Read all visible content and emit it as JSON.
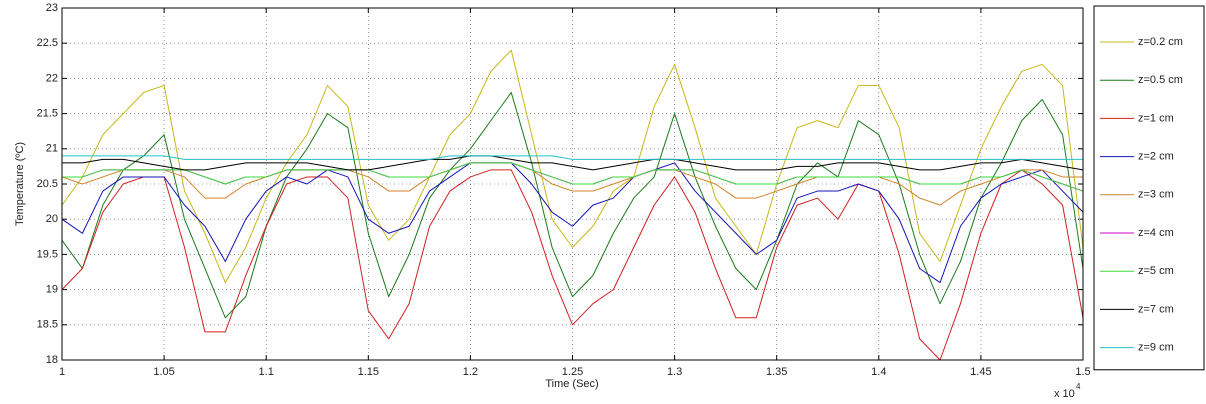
{
  "chart_data": {
    "type": "line",
    "xlabel": "Time (Sec)",
    "ylabel": "Temperature (ºC)",
    "x_scale_base": "x 10",
    "x_scale_exponent": "4",
    "x": [
      10000,
      10100,
      10200,
      10300,
      10400,
      10500,
      10600,
      10700,
      10800,
      10900,
      11000,
      11100,
      11200,
      11300,
      11400,
      11500,
      11600,
      11700,
      11800,
      11900,
      12000,
      12100,
      12200,
      12300,
      12400,
      12500,
      12600,
      12700,
      12800,
      12900,
      13000,
      13100,
      13200,
      13300,
      13400,
      13500,
      13600,
      13700,
      13800,
      13900,
      14000,
      14100,
      14200,
      14300,
      14400,
      14500,
      14600,
      14700,
      14800,
      14900,
      15000
    ],
    "xlim": [
      10000,
      15000
    ],
    "xticks": [
      {
        "value": 10000,
        "label": "1"
      },
      {
        "value": 10500,
        "label": "1.05"
      },
      {
        "value": 11000,
        "label": "1.1"
      },
      {
        "value": 11500,
        "label": "1.15"
      },
      {
        "value": 12000,
        "label": "1.2"
      },
      {
        "value": 12500,
        "label": "1.25"
      },
      {
        "value": 13000,
        "label": "1.3"
      },
      {
        "value": 13500,
        "label": "1.35"
      },
      {
        "value": 14000,
        "label": "1.4"
      },
      {
        "value": 14500,
        "label": "1.45"
      },
      {
        "value": 15000,
        "label": "1.5"
      }
    ],
    "ylim": [
      18,
      23
    ],
    "yticks": [
      18,
      18.5,
      19,
      19.5,
      20,
      20.5,
      21,
      21.5,
      22,
      22.5,
      23
    ],
    "grid": true,
    "legend": "outside-right",
    "series": [
      {
        "name": "z=0.2 cm",
        "color": "#c8b818",
        "values": [
          20.2,
          20.6,
          21.2,
          21.5,
          21.8,
          21.9,
          20.4,
          19.8,
          19.1,
          19.6,
          20.3,
          20.8,
          21.2,
          21.9,
          21.6,
          20.2,
          19.7,
          20.0,
          20.6,
          21.2,
          21.5,
          22.1,
          22.4,
          21.2,
          20.0,
          19.6,
          19.9,
          20.4,
          20.6,
          21.6,
          22.2,
          21.3,
          20.3,
          19.9,
          19.5,
          20.5,
          21.3,
          21.4,
          21.3,
          21.9,
          21.9,
          21.3,
          19.8,
          19.4,
          20.2,
          21.0,
          21.6,
          22.1,
          22.2,
          21.9,
          19.6
        ]
      },
      {
        "name": "z=0.5 cm",
        "color": "#1a7a1a",
        "values": [
          19.7,
          19.3,
          20.2,
          20.7,
          20.9,
          21.2,
          20.0,
          19.3,
          18.6,
          18.9,
          19.9,
          20.6,
          21.0,
          21.5,
          21.3,
          19.8,
          18.9,
          19.5,
          20.3,
          20.7,
          21.0,
          21.4,
          21.8,
          20.8,
          19.6,
          18.9,
          19.2,
          19.8,
          20.3,
          20.6,
          21.5,
          20.6,
          19.9,
          19.3,
          19.0,
          19.7,
          20.5,
          20.8,
          20.6,
          21.4,
          21.2,
          20.5,
          19.5,
          18.8,
          19.4,
          20.3,
          20.8,
          21.4,
          21.7,
          21.2,
          19.3
        ]
      },
      {
        "name": "z=1 cm",
        "color": "#d02020",
        "values": [
          19.0,
          19.3,
          20.1,
          20.5,
          20.6,
          20.6,
          19.6,
          18.4,
          18.4,
          19.2,
          19.9,
          20.5,
          20.6,
          20.6,
          20.3,
          18.7,
          18.3,
          18.8,
          19.9,
          20.4,
          20.6,
          20.7,
          20.7,
          20.1,
          19.2,
          18.5,
          18.8,
          19.0,
          19.6,
          20.2,
          20.6,
          20.1,
          19.3,
          18.6,
          18.6,
          19.6,
          20.2,
          20.3,
          20.0,
          20.5,
          20.4,
          19.5,
          18.3,
          18.0,
          18.8,
          19.8,
          20.5,
          20.7,
          20.5,
          20.2,
          18.6
        ]
      },
      {
        "name": "z=2 cm",
        "color": "#1414b8",
        "values": [
          20.0,
          19.8,
          20.4,
          20.6,
          20.6,
          20.6,
          20.2,
          19.9,
          19.4,
          20.0,
          20.4,
          20.6,
          20.5,
          20.7,
          20.6,
          20.0,
          19.8,
          19.9,
          20.4,
          20.6,
          20.8,
          20.8,
          20.8,
          20.5,
          20.1,
          19.9,
          20.2,
          20.3,
          20.6,
          20.7,
          20.8,
          20.4,
          20.1,
          19.8,
          19.5,
          19.7,
          20.3,
          20.4,
          20.4,
          20.5,
          20.4,
          20.0,
          19.3,
          19.1,
          19.9,
          20.3,
          20.5,
          20.6,
          20.7,
          20.4,
          20.1
        ]
      },
      {
        "name": "z=3 cm",
        "color": "#d08428",
        "values": [
          20.6,
          20.5,
          20.6,
          20.7,
          20.7,
          20.7,
          20.6,
          20.3,
          20.3,
          20.5,
          20.6,
          20.7,
          20.7,
          20.7,
          20.7,
          20.6,
          20.4,
          20.4,
          20.6,
          20.7,
          20.8,
          20.8,
          20.8,
          20.7,
          20.5,
          20.4,
          20.4,
          20.5,
          20.6,
          20.7,
          20.7,
          20.6,
          20.5,
          20.3,
          20.3,
          20.4,
          20.5,
          20.6,
          20.6,
          20.6,
          20.6,
          20.5,
          20.3,
          20.2,
          20.4,
          20.5,
          20.6,
          20.7,
          20.7,
          20.6,
          20.6
        ]
      },
      {
        "name": "z=4 cm",
        "color": "#cc00cc",
        "values": [
          20.6,
          20.6,
          20.7,
          20.7,
          20.7,
          20.7,
          20.7,
          20.6,
          20.5,
          20.6,
          20.6,
          20.7,
          20.7,
          20.7,
          20.7,
          20.7,
          20.6,
          20.6,
          20.6,
          20.7,
          20.8,
          20.8,
          20.8,
          20.7,
          20.6,
          20.5,
          20.5,
          20.6,
          20.6,
          20.7,
          20.7,
          20.7,
          20.6,
          20.5,
          20.5,
          20.5,
          20.6,
          20.6,
          20.6,
          20.6,
          20.6,
          20.6,
          20.5,
          20.5,
          20.5,
          20.6,
          20.6,
          20.7,
          20.6,
          20.5,
          20.4
        ]
      },
      {
        "name": "z=5 cm",
        "color": "#3adc3a",
        "values": [
          20.6,
          20.6,
          20.7,
          20.7,
          20.7,
          20.7,
          20.7,
          20.6,
          20.5,
          20.6,
          20.6,
          20.7,
          20.7,
          20.7,
          20.7,
          20.7,
          20.6,
          20.6,
          20.6,
          20.7,
          20.8,
          20.8,
          20.8,
          20.7,
          20.6,
          20.5,
          20.5,
          20.6,
          20.6,
          20.7,
          20.7,
          20.7,
          20.6,
          20.5,
          20.5,
          20.5,
          20.6,
          20.6,
          20.6,
          20.6,
          20.6,
          20.6,
          20.5,
          20.5,
          20.5,
          20.6,
          20.6,
          20.7,
          20.6,
          20.5,
          20.4
        ]
      },
      {
        "name": "z=7 cm",
        "color": "#000000",
        "values": [
          20.8,
          20.8,
          20.85,
          20.85,
          20.8,
          20.75,
          20.7,
          20.7,
          20.75,
          20.8,
          20.8,
          20.8,
          20.8,
          20.75,
          20.7,
          20.7,
          20.75,
          20.8,
          20.85,
          20.85,
          20.9,
          20.9,
          20.85,
          20.8,
          20.8,
          20.75,
          20.7,
          20.75,
          20.8,
          20.85,
          20.85,
          20.8,
          20.75,
          20.7,
          20.7,
          20.7,
          20.75,
          20.75,
          20.8,
          20.8,
          20.8,
          20.75,
          20.7,
          20.7,
          20.75,
          20.8,
          20.8,
          20.85,
          20.8,
          20.75,
          20.7
        ]
      },
      {
        "name": "z=9 cm",
        "color": "#22c0c8",
        "values": [
          20.9,
          20.9,
          20.9,
          20.9,
          20.9,
          20.9,
          20.85,
          20.85,
          20.85,
          20.85,
          20.85,
          20.85,
          20.85,
          20.85,
          20.85,
          20.85,
          20.85,
          20.85,
          20.85,
          20.9,
          20.9,
          20.9,
          20.9,
          20.9,
          20.9,
          20.85,
          20.85,
          20.85,
          20.85,
          20.85,
          20.85,
          20.85,
          20.85,
          20.85,
          20.85,
          20.85,
          20.85,
          20.85,
          20.85,
          20.85,
          20.85,
          20.85,
          20.85,
          20.85,
          20.85,
          20.85,
          20.85,
          20.85,
          20.85,
          20.85,
          20.85
        ]
      }
    ]
  }
}
